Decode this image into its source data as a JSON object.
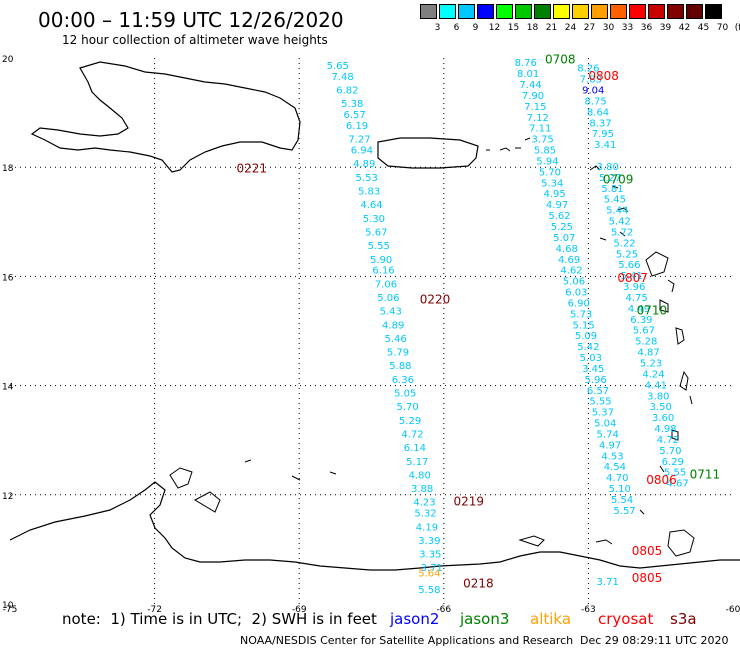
{
  "header": {
    "title": "00:00 – 11:59 UTC 12/26/2020",
    "subtitle": "12 hour collection of altimeter wave heights"
  },
  "scale": {
    "labels": [
      "3",
      "6",
      "9",
      "12",
      "15",
      "18",
      "21",
      "24",
      "27",
      "30",
      "33",
      "36",
      "39",
      "42",
      "45",
      "70",
      "(ft)"
    ],
    "colors": [
      "#7f7f7f",
      "#00ffff",
      "#00c8ff",
      "#0000ff",
      "#00ff00",
      "#00c800",
      "#008000",
      "#ffff00",
      "#ffd000",
      "#ffa000",
      "#ff6000",
      "#ff0000",
      "#c80000",
      "#800000",
      "#600000",
      "#000000"
    ]
  },
  "axes": {
    "lat_labels": [
      {
        "value": "20",
        "lat": 20
      },
      {
        "value": "18",
        "lat": 18
      },
      {
        "value": "16",
        "lat": 16
      },
      {
        "value": "14",
        "lat": 14
      },
      {
        "value": "12",
        "lat": 12
      },
      {
        "value": "10",
        "lat": 10
      }
    ],
    "lon_labels": [
      {
        "value": "-75",
        "lon": -75
      },
      {
        "value": "-72",
        "lon": -72
      },
      {
        "value": "-69",
        "lon": -69
      },
      {
        "value": "-66",
        "lon": -66
      },
      {
        "value": "-63",
        "lon": -63
      },
      {
        "value": "-60",
        "lon": -60
      }
    ]
  },
  "track_labels": [
    {
      "text": "0221",
      "color": "#800000",
      "lon": -70.3,
      "lat": 17.9
    },
    {
      "text": "0220",
      "color": "#800000",
      "lon": -66.5,
      "lat": 15.5
    },
    {
      "text": "0219",
      "color": "#800000",
      "lon": -65.8,
      "lat": 11.8
    },
    {
      "text": "0218",
      "color": "#800000",
      "lon": -65.6,
      "lat": 10.3
    },
    {
      "text": "0708",
      "color": "#008000",
      "lon": -63.9,
      "lat": 19.9
    },
    {
      "text": "0808",
      "color": "#ff0000",
      "lon": -63.0,
      "lat": 19.6
    },
    {
      "text": "0709",
      "color": "#008000",
      "lon": -62.7,
      "lat": 17.7
    },
    {
      "text": "0807",
      "color": "#ff0000",
      "lon": -62.4,
      "lat": 15.9
    },
    {
      "text": "0710",
      "color": "#008000",
      "lon": -62.0,
      "lat": 15.3
    },
    {
      "text": "0711",
      "color": "#008000",
      "lon": -60.9,
      "lat": 12.3
    },
    {
      "text": "0806",
      "color": "#ff0000",
      "lon": -61.8,
      "lat": 12.2
    },
    {
      "text": "0805",
      "color": "#ff0000",
      "lon": -62.1,
      "lat": 10.9
    },
    {
      "text": "0805",
      "color": "#ff0000",
      "lon": -62.1,
      "lat": 10.4
    }
  ],
  "wave_tracks": [
    {
      "name": "track-0221-0220",
      "color": "#00c8ff",
      "points": [
        [
          "5.65",
          -68.2,
          19.8
        ],
        [
          "7.48",
          -68.1,
          19.6
        ],
        [
          "6.82",
          -68.0,
          19.35
        ],
        [
          "5.38",
          -67.9,
          19.1
        ],
        [
          "6.57",
          -67.85,
          18.9
        ],
        [
          "6.19",
          -67.8,
          18.7
        ],
        [
          "7.27",
          -67.75,
          18.45
        ],
        [
          "6.94",
          -67.7,
          18.25
        ],
        [
          "4.89",
          -67.65,
          18.0
        ],
        [
          "5.53",
          -67.6,
          17.75
        ],
        [
          "5.83",
          -67.55,
          17.5
        ],
        [
          "4.64",
          -67.5,
          17.25
        ],
        [
          "5.30",
          -67.45,
          17.0
        ],
        [
          "5.67",
          -67.4,
          16.75
        ],
        [
          "5.55",
          -67.35,
          16.5
        ],
        [
          "5.90",
          -67.3,
          16.25
        ],
        [
          "6.16",
          -67.25,
          16.05
        ],
        [
          "7.06",
          -67.2,
          15.8
        ],
        [
          "5.06",
          -67.15,
          15.55
        ],
        [
          "5.43",
          -67.1,
          15.3
        ],
        [
          "4.89",
          -67.05,
          15.05
        ],
        [
          "5.46",
          -67.0,
          14.8
        ],
        [
          "5.79",
          -66.95,
          14.55
        ],
        [
          "5.88",
          -66.9,
          14.3
        ],
        [
          "6.36",
          -66.85,
          14.05
        ],
        [
          "5.05",
          -66.8,
          13.8
        ],
        [
          "5.70",
          -66.75,
          13.55
        ],
        [
          "5.29",
          -66.7,
          13.3
        ],
        [
          "4.72",
          -66.65,
          13.05
        ],
        [
          "6.14",
          -66.6,
          12.8
        ],
        [
          "5.17",
          -66.55,
          12.55
        ],
        [
          "4.80",
          -66.5,
          12.3
        ],
        [
          "3.88",
          -66.45,
          12.05
        ],
        [
          "4.23",
          -66.4,
          11.8
        ],
        [
          "5.32",
          -66.38,
          11.6
        ],
        [
          "4.19",
          -66.35,
          11.35
        ],
        [
          "3.39",
          -66.3,
          11.1
        ],
        [
          "3.35",
          -66.28,
          10.85
        ],
        [
          "3.71",
          -66.25,
          10.6
        ]
      ]
    },
    {
      "name": "track-0708-0711",
      "color": "#00c8ff",
      "points": [
        [
          "8.76",
          -64.3,
          19.85
        ],
        [
          "8.01",
          -64.25,
          19.65
        ],
        [
          "7.44",
          -64.2,
          19.45
        ],
        [
          "7.90",
          -64.15,
          19.25
        ],
        [
          "7.15",
          -64.1,
          19.05
        ],
        [
          "7.12",
          -64.05,
          18.85
        ],
        [
          "7.11",
          -64.0,
          18.65
        ],
        [
          "3.75",
          -63.95,
          18.45
        ],
        [
          "5.85",
          -63.9,
          18.25
        ],
        [
          "5.94",
          -63.85,
          18.05
        ],
        [
          "5.70",
          -63.8,
          17.85
        ],
        [
          "5.34",
          -63.75,
          17.65
        ],
        [
          "4.95",
          -63.7,
          17.45
        ],
        [
          "4.97",
          -63.65,
          17.25
        ],
        [
          "5.62",
          -63.6,
          17.05
        ],
        [
          "5.25",
          -63.55,
          16.85
        ],
        [
          "5.07",
          -63.5,
          16.65
        ],
        [
          "4.68",
          -63.45,
          16.45
        ],
        [
          "4.69",
          -63.4,
          16.25
        ],
        [
          "4.62",
          -63.35,
          16.05
        ],
        [
          "5.06",
          -63.3,
          15.85
        ],
        [
          "6.03",
          -63.25,
          15.65
        ],
        [
          "6.90",
          -63.2,
          15.45
        ],
        [
          "5.73",
          -63.15,
          15.25
        ],
        [
          "5.15",
          -63.1,
          15.05
        ],
        [
          "5.09",
          -63.05,
          14.85
        ],
        [
          "5.42",
          -63.0,
          14.65
        ],
        [
          "5.03",
          -62.95,
          14.45
        ],
        [
          "3.45",
          -62.9,
          14.25
        ],
        [
          "5.96",
          -62.85,
          14.05
        ],
        [
          "6.57",
          -62.8,
          13.85
        ],
        [
          "5.55",
          -62.75,
          13.65
        ],
        [
          "5.37",
          -62.7,
          13.45
        ],
        [
          "5.04",
          -62.65,
          13.25
        ],
        [
          "5.74",
          -62.6,
          13.05
        ],
        [
          "4.97",
          -62.55,
          12.85
        ],
        [
          "4.53",
          -62.5,
          12.65
        ],
        [
          "4.54",
          -62.45,
          12.45
        ],
        [
          "4.70",
          -62.4,
          12.25
        ],
        [
          "5.10",
          -62.35,
          12.05
        ],
        [
          "5.54",
          -62.3,
          11.85
        ],
        [
          "5.57",
          -62.25,
          11.65
        ]
      ]
    },
    {
      "name": "track-0808-0805",
      "color": "#00c8ff",
      "points": [
        [
          "8.26",
          -63.0,
          19.75
        ],
        [
          "7.83",
          -62.95,
          19.55
        ],
        [
          "8.75",
          -62.85,
          19.15
        ],
        [
          "8.64",
          -62.8,
          18.95
        ],
        [
          "8.37",
          -62.75,
          18.75
        ],
        [
          "7.95",
          -62.7,
          18.55
        ],
        [
          "3.41",
          -62.65,
          18.35
        ],
        [
          "3.80",
          -62.6,
          17.95
        ],
        [
          "5.27",
          -62.55,
          17.75
        ],
        [
          "5.81",
          -62.5,
          17.55
        ],
        [
          "5.45",
          -62.45,
          17.35
        ],
        [
          "5.44",
          -62.4,
          17.15
        ],
        [
          "5.42",
          -62.35,
          16.95
        ],
        [
          "5.72",
          -62.3,
          16.75
        ],
        [
          "5.22",
          -62.25,
          16.55
        ],
        [
          "5.25",
          -62.2,
          16.35
        ],
        [
          "5.66",
          -62.15,
          16.15
        ],
        [
          "5.41",
          -62.1,
          15.95
        ],
        [
          "3.96",
          -62.05,
          15.75
        ],
        [
          "4.75",
          -62.0,
          15.55
        ],
        [
          "4.49",
          -61.95,
          15.35
        ],
        [
          "6.39",
          -61.9,
          15.15
        ],
        [
          "5.67",
          -61.85,
          14.95
        ],
        [
          "5.28",
          -61.8,
          14.75
        ],
        [
          "4.87",
          -61.75,
          14.55
        ],
        [
          "5.23",
          -61.7,
          14.35
        ],
        [
          "4.24",
          -61.65,
          14.15
        ],
        [
          "4.41",
          -61.6,
          13.95
        ],
        [
          "3.80",
          -61.55,
          13.75
        ],
        [
          "3.50",
          -61.5,
          13.55
        ],
        [
          "3.60",
          -61.45,
          13.35
        ],
        [
          "4.98",
          -61.4,
          13.15
        ],
        [
          "4.72",
          -61.35,
          12.95
        ],
        [
          "5.70",
          -61.3,
          12.75
        ],
        [
          "6.29",
          -61.25,
          12.55
        ],
        [
          "5.55",
          -61.2,
          12.35
        ],
        [
          "4.67",
          -61.15,
          12.15
        ]
      ]
    }
  ],
  "highlight_points": [
    {
      "text": "9.04",
      "color": "#0000ff",
      "lon": -62.9,
      "lat": 19.35
    },
    {
      "text": "5.64",
      "color": "#ffa000",
      "lon": -66.3,
      "lat": 10.5
    },
    {
      "text": "5.58",
      "color": "#00c8ff",
      "lon": -66.3,
      "lat": 10.2
    },
    {
      "text": "3.71",
      "color": "#00c8ff",
      "lon": -62.6,
      "lat": 10.35
    }
  ],
  "note": {
    "prefix": "note:  1) Time is in UTC;  2) SWH is in feet",
    "sat1": "jason2",
    "sat2": "jason3",
    "sat3": "altika",
    "sat4": "cryosat",
    "sat5": "s3a",
    "sat_colors": {
      "jason2": "#0000ff",
      "jason3": "#008000",
      "altika": "#ffa000",
      "cryosat": "#ff0000",
      "s3a": "#800000"
    }
  },
  "footer": {
    "credit": "NOAA/NESDIS Center for Satellite Applications and Research",
    "date": "Dec 29 08:29:11 UTC 2020"
  }
}
